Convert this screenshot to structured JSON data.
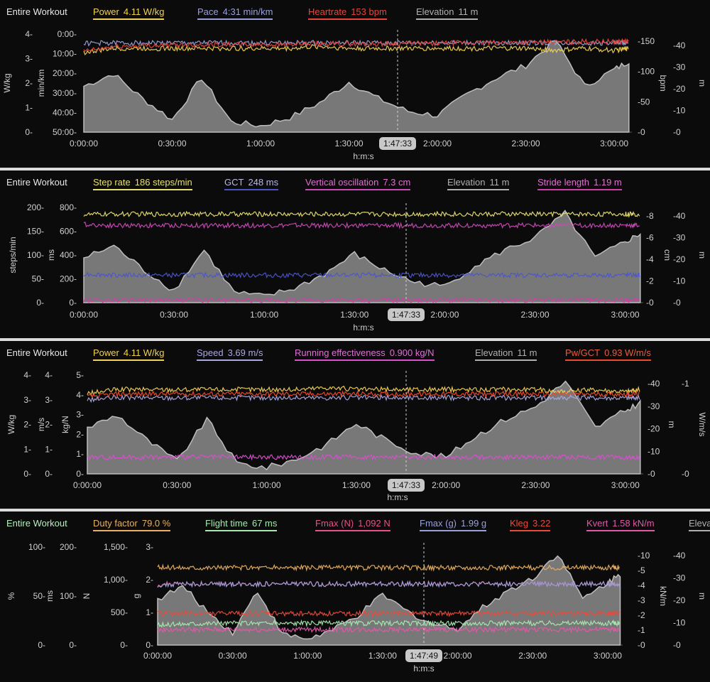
{
  "panels": [
    {
      "workout_label": "Entire Workout",
      "legend": [
        {
          "name": "Power",
          "value": "4.11 W/kg",
          "color": "#f0d25a"
        },
        {
          "name": "Pace",
          "value": "4:31 min/km",
          "color": "#9aa0d8"
        },
        {
          "name": "Heartrate",
          "value": "153 bpm",
          "color": "#e8453c"
        },
        {
          "name": "Elevation",
          "value": "11 m",
          "color": "#a8a8a8"
        }
      ],
      "left_axes": [
        {
          "label": "W/kg",
          "ticks": [
            "0-",
            "1-",
            "2-",
            "3-",
            "4-"
          ]
        },
        {
          "label": "min/km",
          "ticks": [
            "50:00-",
            "40:00-",
            "30:00-",
            "20:00-",
            "10:00-",
            "0:00-"
          ]
        }
      ],
      "right_axes": [
        {
          "label": "bpm",
          "ticks": [
            "-0",
            "-50",
            "-100",
            "-150"
          ]
        },
        {
          "label": "m",
          "ticks": [
            "-0",
            "-10",
            "-20",
            "-30",
            "-40"
          ]
        }
      ],
      "x_ticks": [
        "0:00:00",
        "0:30:00",
        "1:00:00",
        "1:30:00",
        "2:00:00",
        "2:30:00",
        "3:00:00"
      ],
      "x_label": "h:m:s",
      "cursor": "1:47:33"
    },
    {
      "workout_label": "Entire Workout",
      "legend": [
        {
          "name": "Step rate",
          "value": "186 steps/min",
          "color": "#e6e070"
        },
        {
          "name": "GCT",
          "value": "248 ms",
          "color": "#4c55c8"
        },
        {
          "name": "Vertical oscillation",
          "value": "7.3 cm",
          "color": "#cc49b8"
        },
        {
          "name": "Elevation",
          "value": "11 m",
          "color": "#a8a8a8"
        },
        {
          "name": "Stride length",
          "value": "1.19 m",
          "color": "#d23fa8"
        }
      ],
      "left_axes": [
        {
          "label": "steps/min",
          "ticks": [
            "0-",
            "50-",
            "100-",
            "150-",
            "200-"
          ]
        },
        {
          "label": "ms",
          "ticks": [
            "0-",
            "200-",
            "400-",
            "600-",
            "800-"
          ]
        }
      ],
      "right_axes": [
        {
          "label": "cm",
          "ticks": [
            "-0",
            "-2",
            "-4",
            "-6",
            "-8"
          ]
        },
        {
          "label": "m",
          "ticks": [
            "-0",
            "-10",
            "-20",
            "-30",
            "-40"
          ]
        }
      ],
      "x_ticks": [
        "0:00:00",
        "0:30:00",
        "1:00:00",
        "1:30:00",
        "2:00:00",
        "2:30:00",
        "3:00:00"
      ],
      "x_label": "h:m:s",
      "cursor": "1:47:33"
    },
    {
      "workout_label": "Entire Workout",
      "legend": [
        {
          "name": "Power",
          "value": "4.11 W/kg",
          "color": "#f0d25a"
        },
        {
          "name": "Speed",
          "value": "3.69 m/s",
          "color": "#a9a9e0"
        },
        {
          "name": "Running effectiveness",
          "value": "0.900 kg/N",
          "color": "#d84fcf"
        },
        {
          "name": "Elevation",
          "value": "11 m",
          "color": "#a8a8a8"
        },
        {
          "name": "Pw/GCT",
          "value": "0.93 W/m/s",
          "color": "#ee4a2e"
        }
      ],
      "left_axes": [
        {
          "label": "W/kg",
          "ticks": [
            "0-",
            "1-",
            "2-",
            "3-",
            "4-"
          ]
        },
        {
          "label": "m/s",
          "ticks": [
            "0-",
            "1-",
            "2-",
            "3-",
            "4-"
          ]
        },
        {
          "label": "kg/N",
          "ticks": [
            "0-",
            "1-",
            "2-",
            "3-",
            "4-",
            "5-"
          ]
        }
      ],
      "right_axes": [
        {
          "label": "m",
          "ticks": [
            "-0",
            "-10",
            "-20",
            "-30",
            "-40"
          ]
        },
        {
          "label": "W/m/s",
          "ticks": [
            "-0",
            "-1"
          ]
        }
      ],
      "x_ticks": [
        "0:00:00",
        "0:30:00",
        "1:00:00",
        "1:30:00",
        "2:00:00",
        "2:30:00",
        "3:00:00"
      ],
      "x_label": "h:m:s",
      "cursor": "1:47:33"
    },
    {
      "workout_label": "Entire Workout",
      "legend": [
        {
          "name": "Duty factor",
          "value": "79.0 %",
          "color": "#e8b060"
        },
        {
          "name": "Flight time",
          "value": "67 ms",
          "color": "#a8e8b0"
        },
        {
          "name": "Fmax (N)",
          "value": "1,092 N",
          "color": "#e8508a"
        },
        {
          "name": "Fmax (g)",
          "value": "1.99 g",
          "color": "#9aa0d8"
        },
        {
          "name": "Kleg",
          "value": "3.22",
          "color": "#e84a3c"
        },
        {
          "name": "Kvert",
          "value": "1.58 kN/m",
          "color": "#e05aa8"
        },
        {
          "name": "Eleva",
          "value": "",
          "color": "#a8a8a8"
        }
      ],
      "left_axes": [
        {
          "label": "%",
          "ticks": [
            "0-",
            "50-",
            "100-"
          ]
        },
        {
          "label": "ms",
          "ticks": [
            "0-",
            "100-",
            "200-"
          ]
        },
        {
          "label": "N",
          "ticks": [
            "0-",
            "500-",
            "1,000-",
            "1,500-"
          ]
        },
        {
          "label": "g",
          "ticks": [
            "0-",
            "1-",
            "2-",
            "3-"
          ]
        }
      ],
      "right_axes": [
        {
          "label": "kN/m",
          "ticks": [
            "-0",
            "-1",
            "-2",
            "-3",
            "-4",
            "-5",
            "-10"
          ]
        },
        {
          "label": "m",
          "ticks": [
            "-0",
            "-10",
            "-20",
            "-30",
            "-40"
          ]
        }
      ],
      "x_ticks": [
        "0:00:00",
        "0:30:00",
        "1:00:00",
        "1:30:00",
        "2:00:00",
        "2:30:00",
        "3:00:00"
      ],
      "x_label": "h:m:s",
      "cursor": "1:47:49"
    }
  ],
  "chart_data": [
    {
      "type": "line",
      "title": "Entire Workout",
      "xlabel": "h:m:s",
      "x": [
        "0:00:00",
        "0:10:00",
        "0:20:00",
        "0:30:00",
        "0:40:00",
        "0:50:00",
        "1:00:00",
        "1:10:00",
        "1:20:00",
        "1:30:00",
        "1:40:00",
        "1:50:00",
        "2:00:00",
        "2:10:00",
        "2:20:00",
        "2:30:00",
        "2:40:00",
        "2:50:00",
        "3:00:00",
        "3:05:00"
      ],
      "series": [
        {
          "name": "Power",
          "unit": "W/kg",
          "values": [
            3.9,
            4.1,
            4.1,
            4.1,
            4.1,
            4.1,
            4.1,
            4.1,
            4.2,
            4.1,
            4.1,
            4.1,
            4.1,
            4.1,
            4.1,
            4.1,
            4.0,
            4.1,
            4.0,
            4.1
          ]
        },
        {
          "name": "Pace",
          "unit": "min/km",
          "values": [
            "4:40",
            "4:30",
            "4:31",
            "4:30",
            "4:30",
            "4:30",
            "4:31",
            "4:32",
            "4:30",
            "4:31",
            "4:31",
            "4:30",
            "4:31",
            "4:31",
            "4:30",
            "4:30",
            "4:31",
            "4:30",
            "4:30",
            "4:31"
          ]
        },
        {
          "name": "Heartrate",
          "unit": "bpm",
          "values": [
            140,
            148,
            150,
            151,
            152,
            152,
            152,
            152,
            153,
            153,
            153,
            154,
            154,
            155,
            155,
            156,
            156,
            157,
            157,
            158
          ]
        },
        {
          "name": "Elevation",
          "unit": "m",
          "values": [
            22,
            28,
            16,
            6,
            26,
            5,
            3,
            7,
            14,
            24,
            16,
            10,
            8,
            18,
            26,
            32,
            44,
            22,
            30,
            34
          ]
        }
      ]
    },
    {
      "type": "line",
      "title": "Entire Workout",
      "xlabel": "h:m:s",
      "x": [
        "0:00:00",
        "0:10:00",
        "0:20:00",
        "0:30:00",
        "0:40:00",
        "0:50:00",
        "1:00:00",
        "1:10:00",
        "1:20:00",
        "1:30:00",
        "1:40:00",
        "1:50:00",
        "2:00:00",
        "2:10:00",
        "2:20:00",
        "2:30:00",
        "2:40:00",
        "2:50:00",
        "3:00:00",
        "3:05:00"
      ],
      "series": [
        {
          "name": "Step rate",
          "unit": "steps/min",
          "values": [
            185,
            186,
            186,
            186,
            186,
            186,
            186,
            186,
            186,
            186,
            186,
            186,
            186,
            186,
            186,
            186,
            186,
            186,
            186,
            186
          ]
        },
        {
          "name": "GCT",
          "unit": "ms",
          "values": [
            260,
            250,
            248,
            248,
            248,
            248,
            248,
            248,
            248,
            248,
            248,
            248,
            248,
            248,
            248,
            248,
            248,
            248,
            248,
            248
          ]
        },
        {
          "name": "Vertical oscillation",
          "unit": "cm",
          "values": [
            7.4,
            7.3,
            7.3,
            7.3,
            7.3,
            7.3,
            7.3,
            7.3,
            7.3,
            7.3,
            7.3,
            7.3,
            7.3,
            7.3,
            7.3,
            7.3,
            7.3,
            7.3,
            7.3,
            7.3
          ]
        },
        {
          "name": "Elevation",
          "unit": "m",
          "values": [
            22,
            28,
            16,
            6,
            26,
            5,
            3,
            7,
            14,
            24,
            16,
            10,
            8,
            18,
            26,
            32,
            44,
            22,
            30,
            34
          ]
        },
        {
          "name": "Stride length",
          "unit": "m",
          "values": [
            1.15,
            1.19,
            1.19,
            1.19,
            1.19,
            1.19,
            1.19,
            1.19,
            1.2,
            1.19,
            1.19,
            1.19,
            1.19,
            1.19,
            1.19,
            1.19,
            1.2,
            1.19,
            1.19,
            1.19
          ]
        }
      ]
    },
    {
      "type": "line",
      "title": "Entire Workout",
      "xlabel": "h:m:s",
      "x": [
        "0:00:00",
        "0:10:00",
        "0:20:00",
        "0:30:00",
        "0:40:00",
        "0:50:00",
        "1:00:00",
        "1:10:00",
        "1:20:00",
        "1:30:00",
        "1:40:00",
        "1:50:00",
        "2:00:00",
        "2:10:00",
        "2:20:00",
        "2:30:00",
        "2:40:00",
        "2:50:00",
        "3:00:00",
        "3:05:00"
      ],
      "series": [
        {
          "name": "Power",
          "unit": "W/kg",
          "values": [
            3.9,
            4.1,
            4.1,
            4.1,
            4.1,
            4.1,
            4.1,
            4.1,
            4.2,
            4.1,
            4.1,
            4.1,
            4.1,
            4.1,
            4.1,
            4.1,
            4.0,
            4.1,
            4.0,
            4.1
          ]
        },
        {
          "name": "Speed",
          "unit": "m/s",
          "values": [
            3.6,
            3.7,
            3.7,
            3.7,
            3.7,
            3.7,
            3.7,
            3.7,
            3.7,
            3.7,
            3.7,
            3.7,
            3.7,
            3.7,
            3.7,
            3.7,
            3.7,
            3.7,
            3.7,
            3.7
          ]
        },
        {
          "name": "Running effectiveness",
          "unit": "kg/N",
          "values": [
            0.9,
            0.9,
            0.9,
            0.9,
            0.9,
            0.9,
            0.9,
            0.9,
            0.9,
            0.9,
            0.9,
            0.9,
            0.9,
            0.9,
            0.9,
            0.9,
            0.9,
            0.9,
            0.9,
            0.9
          ]
        },
        {
          "name": "Elevation",
          "unit": "m",
          "values": [
            22,
            28,
            16,
            6,
            26,
            5,
            3,
            7,
            14,
            24,
            16,
            10,
            8,
            18,
            26,
            32,
            44,
            22,
            30,
            34
          ]
        },
        {
          "name": "Pw/GCT",
          "unit": "W/m/s",
          "values": [
            0.9,
            0.93,
            0.93,
            0.93,
            0.93,
            0.93,
            0.93,
            0.93,
            0.93,
            0.93,
            0.93,
            0.93,
            0.93,
            0.93,
            0.93,
            0.93,
            0.93,
            0.93,
            0.93,
            0.93
          ]
        }
      ]
    },
    {
      "type": "line",
      "title": "Entire Workout",
      "xlabel": "h:m:s",
      "x": [
        "0:00:00",
        "0:10:00",
        "0:20:00",
        "0:30:00",
        "0:40:00",
        "0:50:00",
        "1:00:00",
        "1:10:00",
        "1:20:00",
        "1:30:00",
        "1:40:00",
        "1:50:00",
        "2:00:00",
        "2:10:00",
        "2:20:00",
        "2:30:00",
        "2:40:00",
        "2:50:00",
        "3:00:00",
        "3:05:00"
      ],
      "series": [
        {
          "name": "Duty factor",
          "unit": "%",
          "values": [
            79,
            79,
            79,
            79,
            79,
            79,
            79,
            79,
            79,
            79,
            79,
            79,
            79,
            79,
            79,
            79,
            79,
            79,
            79,
            79
          ]
        },
        {
          "name": "Flight time",
          "unit": "ms",
          "values": [
            60,
            65,
            67,
            67,
            67,
            67,
            67,
            67,
            67,
            67,
            67,
            67,
            67,
            67,
            67,
            67,
            68,
            67,
            67,
            67
          ]
        },
        {
          "name": "Fmax (N)",
          "unit": "N",
          "values": [
            1080,
            1092,
            1092,
            1092,
            1092,
            1092,
            1092,
            1092,
            1092,
            1092,
            1092,
            1092,
            1092,
            1092,
            1092,
            1092,
            1092,
            1092,
            1092,
            1092
          ]
        },
        {
          "name": "Fmax (g)",
          "unit": "g",
          "values": [
            1.95,
            1.99,
            1.99,
            1.99,
            1.99,
            1.99,
            1.99,
            1.99,
            1.99,
            1.99,
            1.99,
            1.99,
            1.99,
            1.99,
            1.99,
            1.99,
            1.99,
            1.99,
            1.99,
            1.99
          ]
        },
        {
          "name": "Kleg",
          "values": [
            3.2,
            3.22,
            3.22,
            3.22,
            3.22,
            3.22,
            3.22,
            3.22,
            3.22,
            3.22,
            3.22,
            3.22,
            3.22,
            3.22,
            3.22,
            3.22,
            3.22,
            3.22,
            3.22,
            3.22
          ]
        },
        {
          "name": "Kvert",
          "unit": "kN/m",
          "values": [
            1.55,
            1.58,
            1.58,
            1.58,
            1.58,
            1.58,
            1.58,
            1.58,
            1.58,
            1.58,
            1.58,
            1.58,
            1.58,
            1.58,
            1.58,
            1.58,
            1.58,
            1.58,
            1.58,
            1.58
          ]
        },
        {
          "name": "Elevation",
          "unit": "m",
          "values": [
            22,
            28,
            16,
            6,
            26,
            5,
            3,
            7,
            14,
            24,
            16,
            10,
            8,
            18,
            26,
            32,
            44,
            22,
            30,
            34
          ]
        }
      ]
    }
  ]
}
